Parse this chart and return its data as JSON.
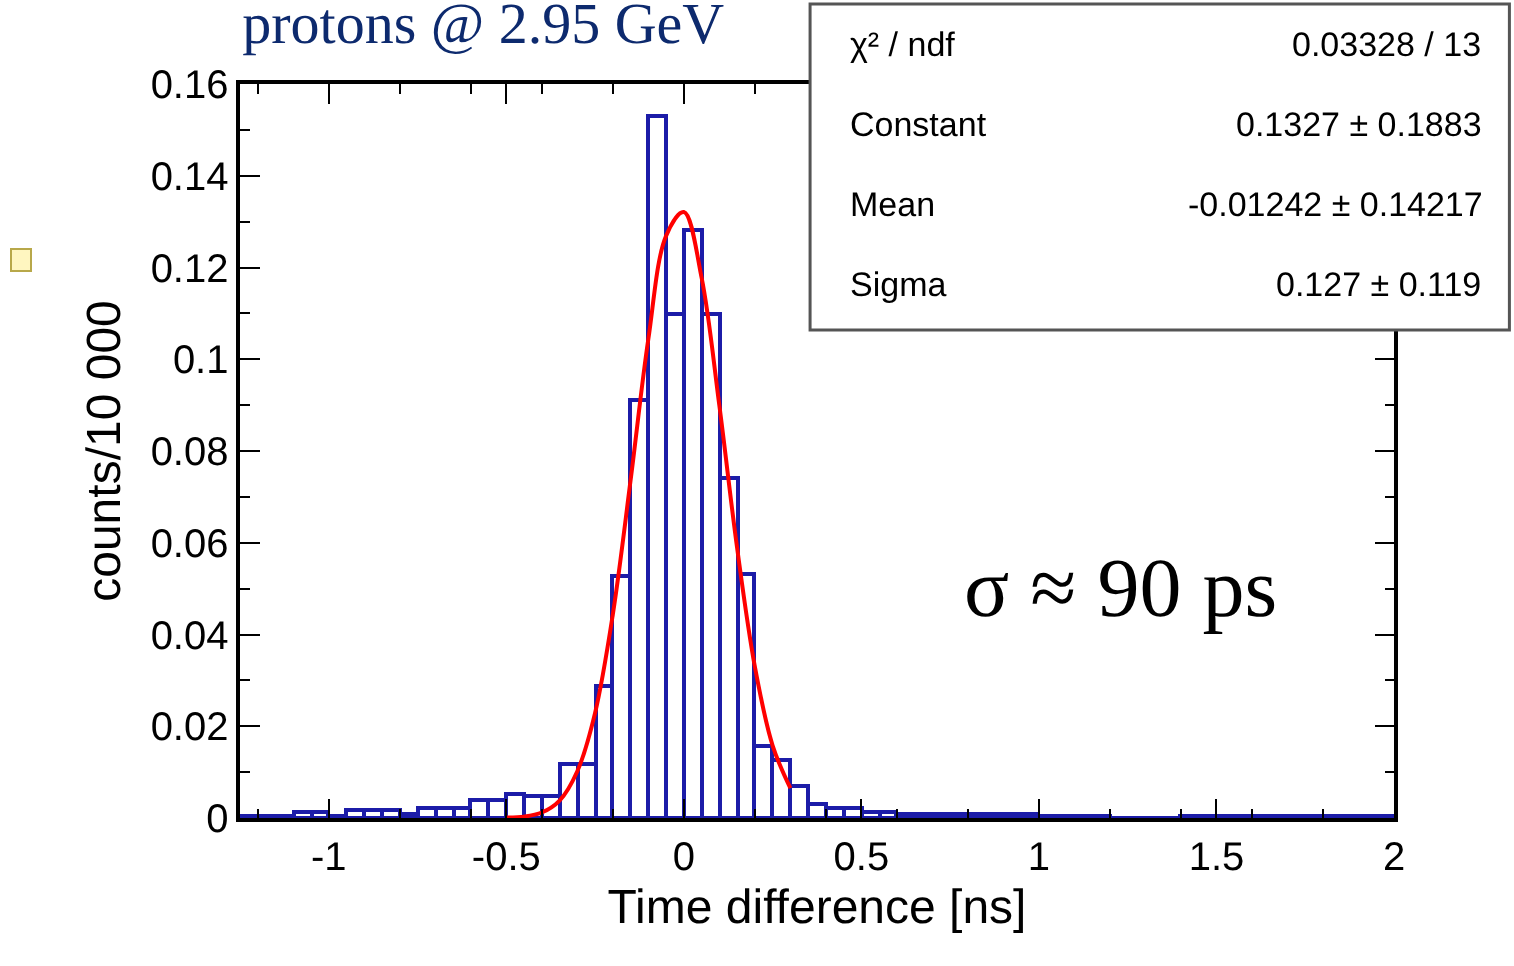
{
  "chart_data": {
    "type": "histogram",
    "title": "protons @ 2.95 GeV",
    "xlabel": "Time difference [ns]",
    "ylabel": "counts/10 000",
    "bins": [
      -1.25,
      -1.2,
      -1.15,
      -1.1,
      -1.05,
      -1.0,
      -0.95,
      -0.9,
      -0.85,
      -0.8,
      -0.75,
      -0.7,
      -0.65,
      -0.6,
      -0.55,
      -0.5,
      -0.45,
      -0.4,
      -0.35,
      -0.3,
      -0.25,
      -0.2,
      -0.15,
      -0.1,
      -0.05,
      0,
      0.05,
      0.1,
      0.15,
      0.2,
      0.25,
      0.3,
      0.35,
      0.4,
      0.45,
      0.5,
      0.55,
      0.6,
      0.65,
      0.7,
      0.75,
      0.8,
      0.85,
      0.9,
      0.95,
      1.0,
      1.05,
      1.1,
      1.15,
      1.2,
      1.25,
      1.3,
      1.35,
      1.4,
      1.45,
      1.5,
      1.55,
      1.6,
      1.65,
      1.7,
      1.75,
      1.8,
      1.85,
      1.9,
      1.95,
      2.0
    ],
    "values": [
      0.0004,
      0.0004,
      0.0004,
      0.0014,
      0.0014,
      0.0004,
      0.0017,
      0.0017,
      0.0017,
      0.001,
      0.0024,
      0.0024,
      0.0024,
      0.0038,
      0.0038,
      0.0051,
      0.0047,
      0.0047,
      0.0117,
      0.0117,
      0.0288,
      0.0526,
      0.0913,
      0.153,
      0.11,
      0.128,
      0.11,
      0.074,
      0.053,
      0.0156,
      0.0128,
      0.007,
      0.003,
      0.002,
      0.002,
      0.0015,
      0.0015,
      0.001,
      0.001,
      0.001,
      0.001,
      0.0008,
      0.0008,
      0.0008,
      0.0008,
      0.0004,
      0.0004,
      0.0004,
      0.0004,
      0,
      0,
      0,
      0,
      0.0003,
      0.0003,
      0.0003,
      0.0003,
      0.0003,
      0.0003,
      0.0003,
      0.0003,
      0.0003,
      0.0003,
      0.0003,
      0.0003
    ],
    "color": "#1c1ca8",
    "series": [
      {
        "type": "line",
        "color": "#ff0000",
        "x": [
          -0.5,
          -0.45,
          -0.4,
          -0.35,
          -0.3,
          -0.25,
          -0.2,
          -0.15,
          -0.1,
          -0.05,
          0,
          0.05,
          0.1,
          0.15,
          0.2,
          0.25,
          0.3
        ],
        "values": [
          0.0001,
          0.0003,
          0.0012,
          0.0038,
          0.0102,
          0.0229,
          0.0444,
          0.0736,
          0.1044,
          0.1269,
          0.1321,
          0.1178,
          0.0899,
          0.0589,
          0.033,
          0.0158,
          0.0065
        ]
      }
    ],
    "xlim": [
      -1.25,
      2
    ],
    "xticks": [
      -1,
      -0.5,
      0,
      0.5,
      1,
      1.5,
      2
    ],
    "ylim": [
      0,
      0.16
    ],
    "yticks": [
      0,
      0.02,
      0.04,
      0.06,
      0.08,
      0.1,
      0.12,
      0.14,
      0.16
    ],
    "grid": false,
    "legend": false,
    "annotations": [
      "χ² / ndf",
      "0.03328 / 13",
      "Constant",
      "0.1327 ± 0.1883",
      "Mean",
      "-0.01242 ± 0.14217",
      "Sigma",
      "0.127 ± 0.119",
      "σ ≈ 90 ps"
    ]
  }
}
